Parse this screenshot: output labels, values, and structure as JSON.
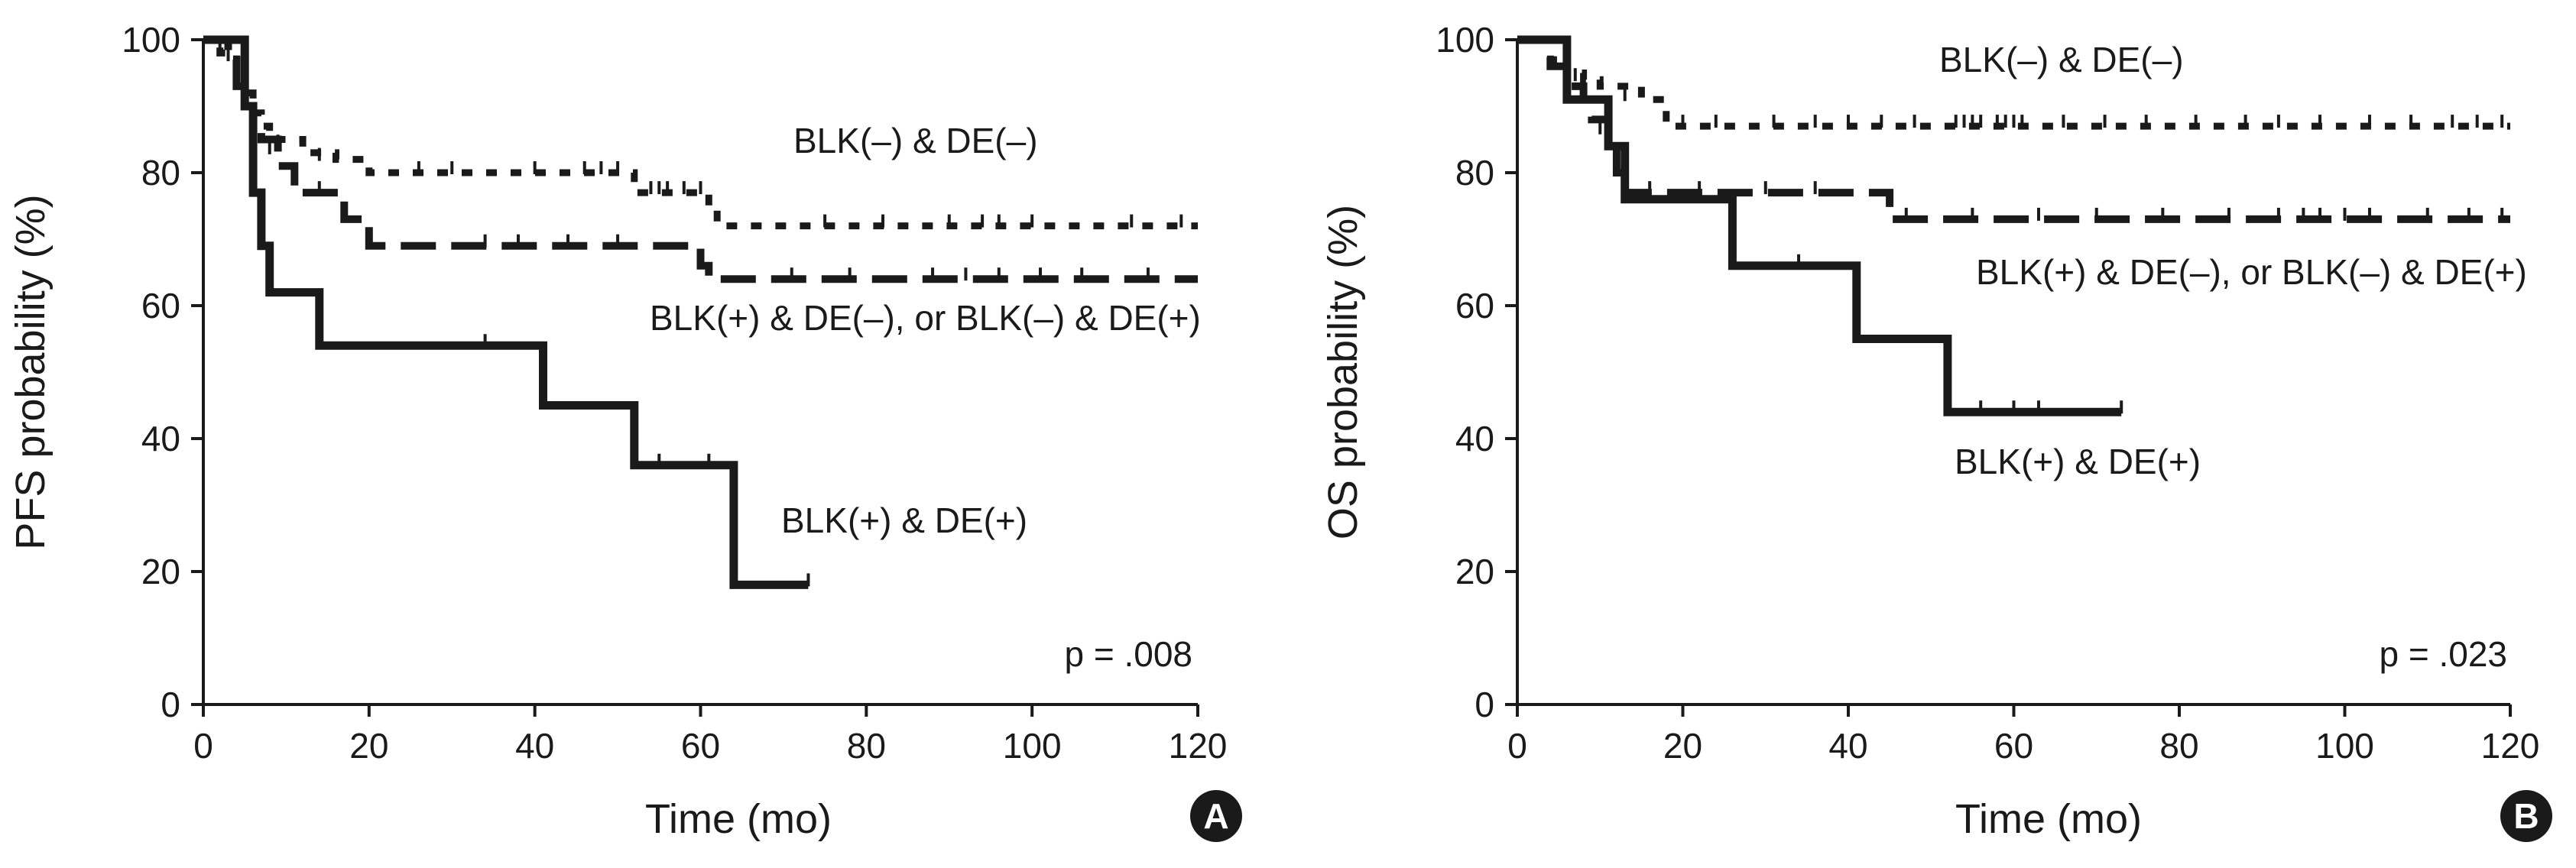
{
  "chart_data": [
    {
      "type": "line",
      "panel": "A",
      "ylabel": "PFS probability (%)",
      "xlabel": "Time (mo)",
      "xlim": [
        0,
        120
      ],
      "ylim": [
        0,
        100
      ],
      "xticks": [
        0,
        20,
        40,
        60,
        80,
        100,
        120
      ],
      "yticks": [
        0,
        20,
        40,
        60,
        80,
        100
      ],
      "pvalue": "p = .008",
      "series": [
        {
          "label": "BLK(–) & DE(–)",
          "style": "dotted",
          "x": [
            0,
            2,
            4,
            5,
            6,
            7,
            8,
            12,
            16,
            20,
            52,
            61,
            62,
            120
          ],
          "y": [
            100,
            98,
            95,
            92,
            89,
            87,
            85,
            83,
            82,
            80,
            77,
            75,
            72,
            72
          ],
          "censor_x": [
            3,
            9,
            14,
            26,
            30,
            40,
            46,
            48,
            50,
            54,
            55,
            56,
            58,
            60,
            75,
            82,
            90,
            94,
            96,
            100,
            112,
            118
          ],
          "censor_y": [
            97,
            84,
            82,
            80,
            80,
            80,
            80,
            80,
            80,
            77,
            77,
            77,
            77,
            77,
            72,
            72,
            72,
            72,
            72,
            72,
            72,
            72
          ]
        },
        {
          "label": "BLK(+) & DE(–), or BLK(–) & DE(+)",
          "style": "dashed",
          "x": [
            0,
            3,
            4,
            5,
            6,
            7,
            9,
            11,
            17,
            20,
            60,
            61,
            120
          ],
          "y": [
            100,
            97,
            93,
            90,
            87,
            85,
            81,
            77,
            73,
            69,
            66,
            64,
            64
          ],
          "censor_x": [
            2,
            8,
            14,
            34,
            38,
            44,
            50,
            71,
            78,
            88,
            92,
            96,
            101,
            106,
            114
          ],
          "censor_y": [
            98,
            83,
            77,
            69,
            69,
            69,
            69,
            64,
            64,
            64,
            64,
            64,
            64,
            64,
            64
          ],
          "mid_label": "BLK(+) & DE(–), or BLK(–) & DE(+)"
        },
        {
          "label": "BLK(+) & DE(+)",
          "style": "solid",
          "x": [
            0,
            5,
            6,
            7,
            8,
            14,
            41,
            52,
            64,
            73
          ],
          "y": [
            100,
            90,
            77,
            69,
            62,
            54,
            45,
            36,
            18,
            18
          ],
          "censor_x": [
            34,
            55,
            61,
            73
          ],
          "censor_y": [
            54,
            36,
            36,
            18
          ]
        }
      ]
    },
    {
      "type": "line",
      "panel": "B",
      "ylabel": "OS probability (%)",
      "xlabel": "Time (mo)",
      "xlim": [
        0,
        120
      ],
      "ylim": [
        0,
        100
      ],
      "xticks": [
        0,
        20,
        40,
        60,
        80,
        100,
        120
      ],
      "yticks": [
        0,
        20,
        40,
        60,
        80,
        100
      ],
      "pvalue": "p = .023",
      "series": [
        {
          "label": "BLK(–) & DE(–)",
          "style": "dotted",
          "x": [
            0,
            4,
            6,
            8,
            10,
            15,
            18,
            120
          ],
          "y": [
            100,
            97,
            95,
            94,
            93,
            91,
            87,
            87
          ],
          "censor_x": [
            7,
            13,
            20,
            24,
            31,
            36,
            40,
            44,
            48,
            53,
            54,
            55,
            56,
            58,
            59,
            60,
            61,
            66,
            71,
            76,
            82,
            88,
            92,
            97,
            103,
            108,
            113,
            116,
            119
          ],
          "censor_y": [
            94,
            91,
            87,
            87,
            87,
            87,
            87,
            87,
            87,
            87,
            87,
            87,
            87,
            87,
            87,
            87,
            87,
            87,
            87,
            87,
            87,
            87,
            87,
            87,
            87,
            87,
            87,
            87,
            87
          ]
        },
        {
          "label": "BLK(+) & DE(–), or BLK(–) & DE(+)",
          "style": "dashed",
          "x": [
            0,
            4,
            6,
            8,
            9,
            11,
            12,
            13,
            44,
            45,
            120
          ],
          "y": [
            100,
            96,
            93,
            91,
            88,
            85,
            80,
            77,
            77,
            73,
            73
          ],
          "censor_x": [
            10,
            16,
            22,
            30,
            36,
            47,
            55,
            63,
            70,
            78,
            86,
            92,
            95,
            97,
            100,
            103,
            110,
            115,
            119
          ],
          "censor_y": [
            86,
            77,
            77,
            77,
            77,
            73,
            73,
            73,
            73,
            73,
            73,
            73,
            73,
            73,
            73,
            73,
            73,
            73,
            73
          ]
        },
        {
          "label": "BLK(+) & DE(+)",
          "style": "solid",
          "x": [
            0,
            6,
            11,
            13,
            26,
            41,
            52,
            73
          ],
          "y": [
            100,
            91,
            84,
            76,
            66,
            55,
            44,
            44
          ],
          "censor_x": [
            34,
            56,
            60,
            63,
            73
          ],
          "censor_y": [
            66,
            44,
            44,
            44,
            44
          ]
        }
      ]
    }
  ]
}
